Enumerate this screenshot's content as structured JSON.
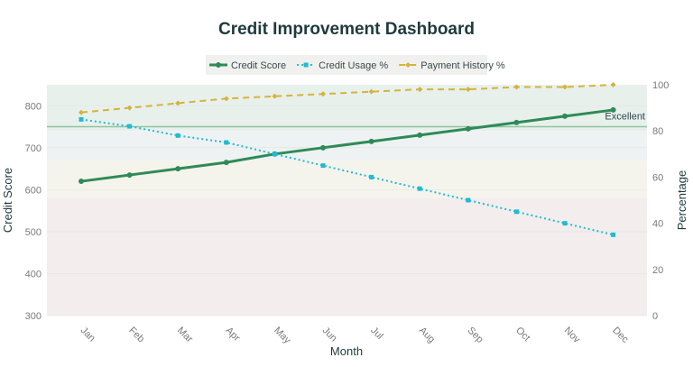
{
  "chart_data": {
    "type": "line",
    "title": "Credit Improvement Dashboard",
    "xlabel": "Month",
    "ylabel": "Credit Score",
    "y2label": "Percentage",
    "categories": [
      "Jan",
      "Feb",
      "Mar",
      "Apr",
      "May",
      "Jun",
      "Jul",
      "Aug",
      "Sep",
      "Oct",
      "Nov",
      "Dec"
    ],
    "ylim": [
      300,
      850
    ],
    "y2lim": [
      0,
      100
    ],
    "yticks": [
      300,
      400,
      500,
      600,
      700,
      800
    ],
    "y2ticks": [
      0,
      20,
      40,
      60,
      80,
      100
    ],
    "grid": true,
    "legend_position": "top",
    "series": [
      {
        "name": "Credit Score",
        "axis": "left",
        "style": "solid",
        "marker": "circle",
        "color": "#2e8b57",
        "values": [
          620,
          635,
          650,
          665,
          685,
          700,
          715,
          730,
          745,
          760,
          775,
          790
        ]
      },
      {
        "name": "Credit Usage %",
        "axis": "right",
        "style": "dotted",
        "marker": "square",
        "color": "#1fbcd2",
        "values": [
          85,
          82,
          78,
          75,
          70,
          65,
          60,
          55,
          50,
          45,
          40,
          35
        ]
      },
      {
        "name": "Payment History %",
        "axis": "right",
        "style": "dashed",
        "marker": "diamond",
        "color": "#d4b43c",
        "values": [
          88,
          90,
          92,
          94,
          95,
          96,
          97,
          98,
          98,
          99,
          99,
          100
        ]
      }
    ],
    "bands": [
      {
        "from": 740,
        "to": 850,
        "color": "#e8f0ec"
      },
      {
        "from": 670,
        "to": 740,
        "color": "#eef2f3"
      },
      {
        "from": 580,
        "to": 670,
        "color": "#f5f4ec"
      },
      {
        "from": 300,
        "to": 580,
        "color": "#f3eded"
      }
    ],
    "annotations": [
      {
        "text": "Excellent",
        "y": 750,
        "color": "#8fc4a0"
      }
    ]
  }
}
